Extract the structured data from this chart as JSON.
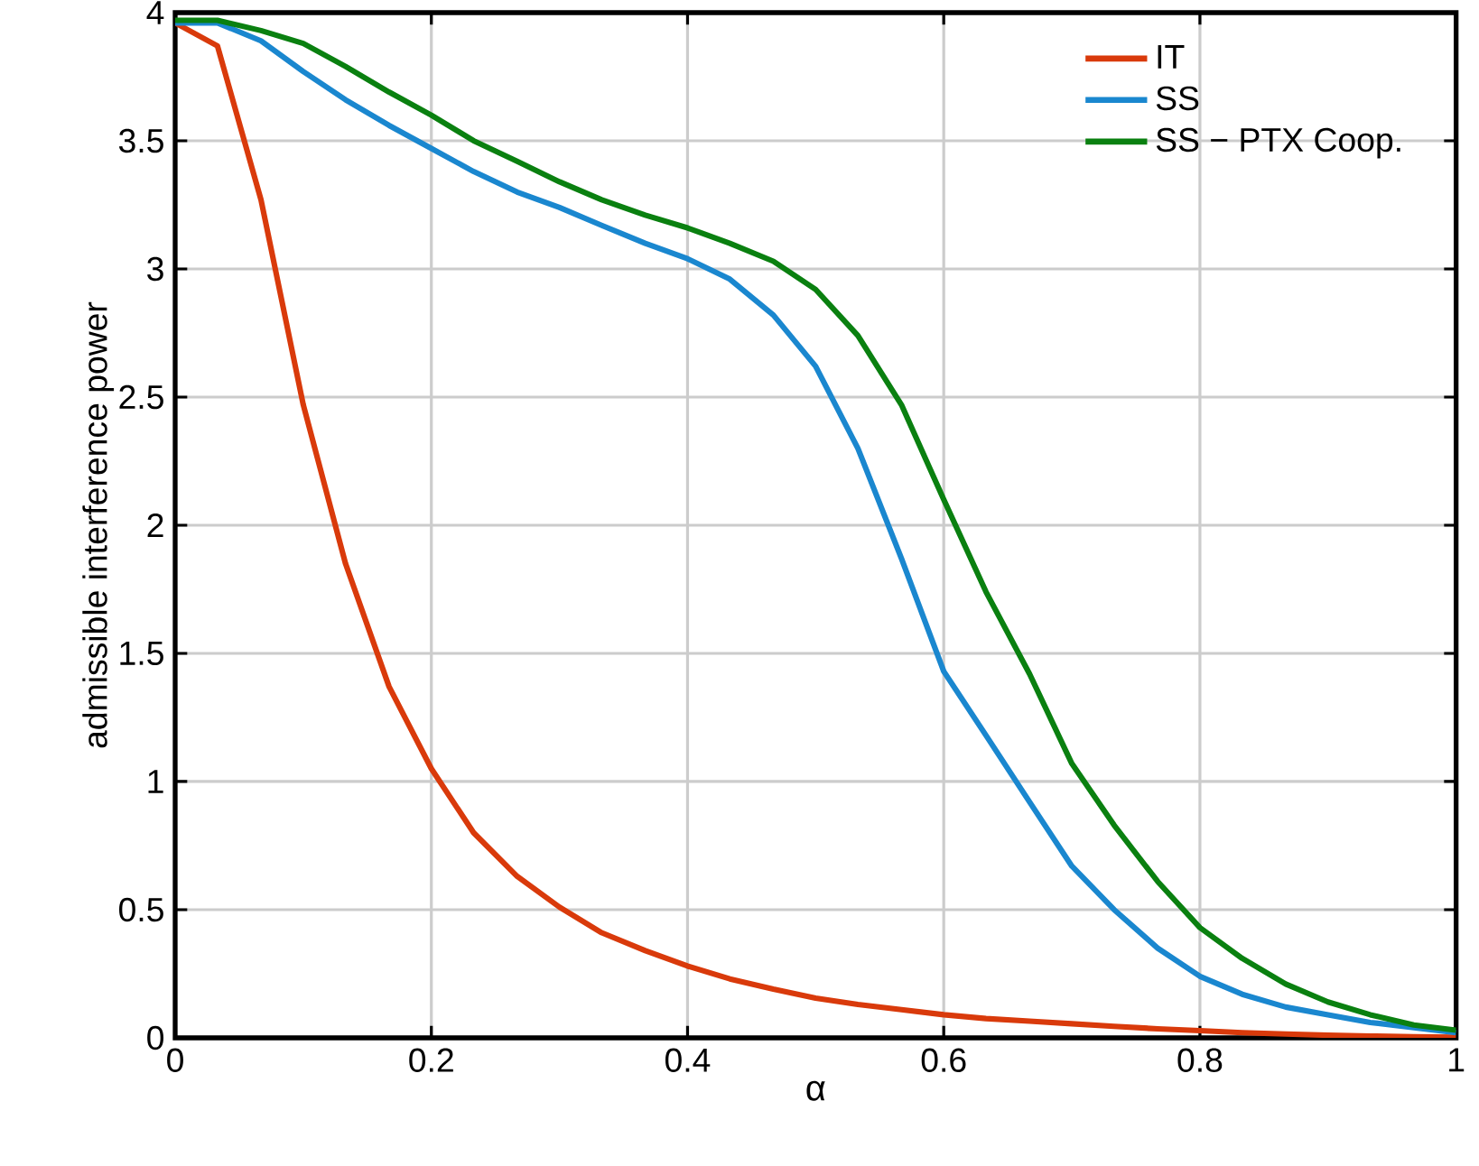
{
  "chart_data": {
    "type": "line",
    "xlabel": "α",
    "ylabel": "admissible interference power",
    "xlim": [
      0,
      1
    ],
    "ylim": [
      0,
      4
    ],
    "xticks": [
      0,
      0.2,
      0.4,
      0.6,
      0.8,
      1
    ],
    "yticks": [
      0,
      0.5,
      1,
      1.5,
      2,
      2.5,
      3,
      3.5,
      4
    ],
    "grid": true,
    "legend": "top right",
    "line_style": "solid",
    "marker": "none",
    "x": [
      0,
      0.033,
      0.067,
      0.1,
      0.133,
      0.167,
      0.2,
      0.233,
      0.267,
      0.3,
      0.333,
      0.367,
      0.4,
      0.433,
      0.467,
      0.5,
      0.533,
      0.567,
      0.6,
      0.633,
      0.667,
      0.7,
      0.733,
      0.767,
      0.8,
      0.833,
      0.867,
      0.9,
      0.933,
      0.967,
      1
    ],
    "series": [
      {
        "name": "IT",
        "color": "#d93a0b",
        "values": [
          3.96,
          3.87,
          3.27,
          2.47,
          1.85,
          1.37,
          1.05,
          0.8,
          0.63,
          0.51,
          0.41,
          0.34,
          0.28,
          0.23,
          0.19,
          0.155,
          0.13,
          0.11,
          0.09,
          0.075,
          0.065,
          0.055,
          0.045,
          0.035,
          0.028,
          0.02,
          0.015,
          0.01,
          0.007,
          0.004,
          0.002
        ]
      },
      {
        "name": "SS",
        "color": "#1a87cf",
        "values": [
          3.96,
          3.96,
          3.89,
          3.77,
          3.66,
          3.56,
          3.47,
          3.38,
          3.3,
          3.24,
          3.17,
          3.1,
          3.04,
          2.96,
          2.82,
          2.62,
          2.3,
          1.87,
          1.43,
          1.18,
          0.92,
          0.67,
          0.5,
          0.35,
          0.24,
          0.17,
          0.12,
          0.09,
          0.06,
          0.04,
          0.02
        ]
      },
      {
        "name": "SS − PTX Coop.",
        "color": "#0a8010",
        "values": [
          3.97,
          3.97,
          3.93,
          3.88,
          3.79,
          3.69,
          3.6,
          3.5,
          3.42,
          3.34,
          3.27,
          3.21,
          3.16,
          3.1,
          3.03,
          2.92,
          2.74,
          2.47,
          2.1,
          1.74,
          1.42,
          1.07,
          0.83,
          0.61,
          0.43,
          0.31,
          0.21,
          0.14,
          0.09,
          0.05,
          0.03
        ]
      }
    ]
  }
}
